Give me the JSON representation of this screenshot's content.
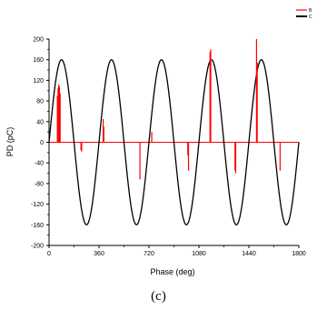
{
  "caption": "(c)",
  "chart_data": {
    "type": "line",
    "xlabel": "Phase (deg)",
    "ylabel": "PD (pC)",
    "xlim": [
      0,
      1800
    ],
    "ylim": [
      -200,
      200
    ],
    "x_ticks": [
      0,
      360,
      720,
      1080,
      1440,
      1800
    ],
    "y_ticks": [
      200,
      160,
      120,
      80,
      40,
      0,
      -40,
      -80,
      -120,
      -160,
      -200
    ],
    "grid": false,
    "legend_placement": "top-right",
    "legend_entries": [
      "B",
      "C"
    ],
    "series": [
      {
        "name": "C",
        "kind": "line",
        "color": "#000000",
        "function": "y = 160 * sin(x)",
        "amplitude": 160,
        "period_deg": 360,
        "x_range": [
          0,
          1800
        ]
      },
      {
        "name": "B",
        "kind": "impulses",
        "color": "#ff0000",
        "x": [
          60,
          65,
          70,
          75,
          80,
          230,
          235,
          390,
          395,
          655,
          740,
          1000,
          1005,
          1160,
          1165,
          1340,
          1345,
          1495,
          1500,
          1665
        ],
        "values": [
          90,
          105,
          112,
          108,
          95,
          -15,
          -18,
          45,
          30,
          -72,
          20,
          -25,
          -55,
          175,
          180,
          -55,
          -60,
          200,
          155,
          -55
        ]
      }
    ]
  }
}
